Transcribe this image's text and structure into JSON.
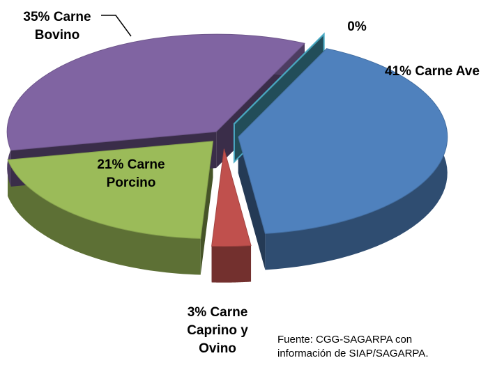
{
  "chart_data": {
    "type": "pie3d",
    "categories": [
      "Carne Ave",
      "Carne Caprino y Ovino",
      "Carne Porcino",
      "Carne Bovino",
      null
    ],
    "values": [
      41,
      3,
      21,
      35,
      0
    ],
    "value_labels": [
      "41%",
      "3%",
      "21%",
      "35%",
      "0%"
    ],
    "colors": [
      "#4f81bd",
      "#c0504d",
      "#9bbb59",
      "#8064a2",
      "#4bacc6"
    ],
    "note": "Fuente: CGG-SAGARPA con información de SIAP/SAGARPA."
  }
}
